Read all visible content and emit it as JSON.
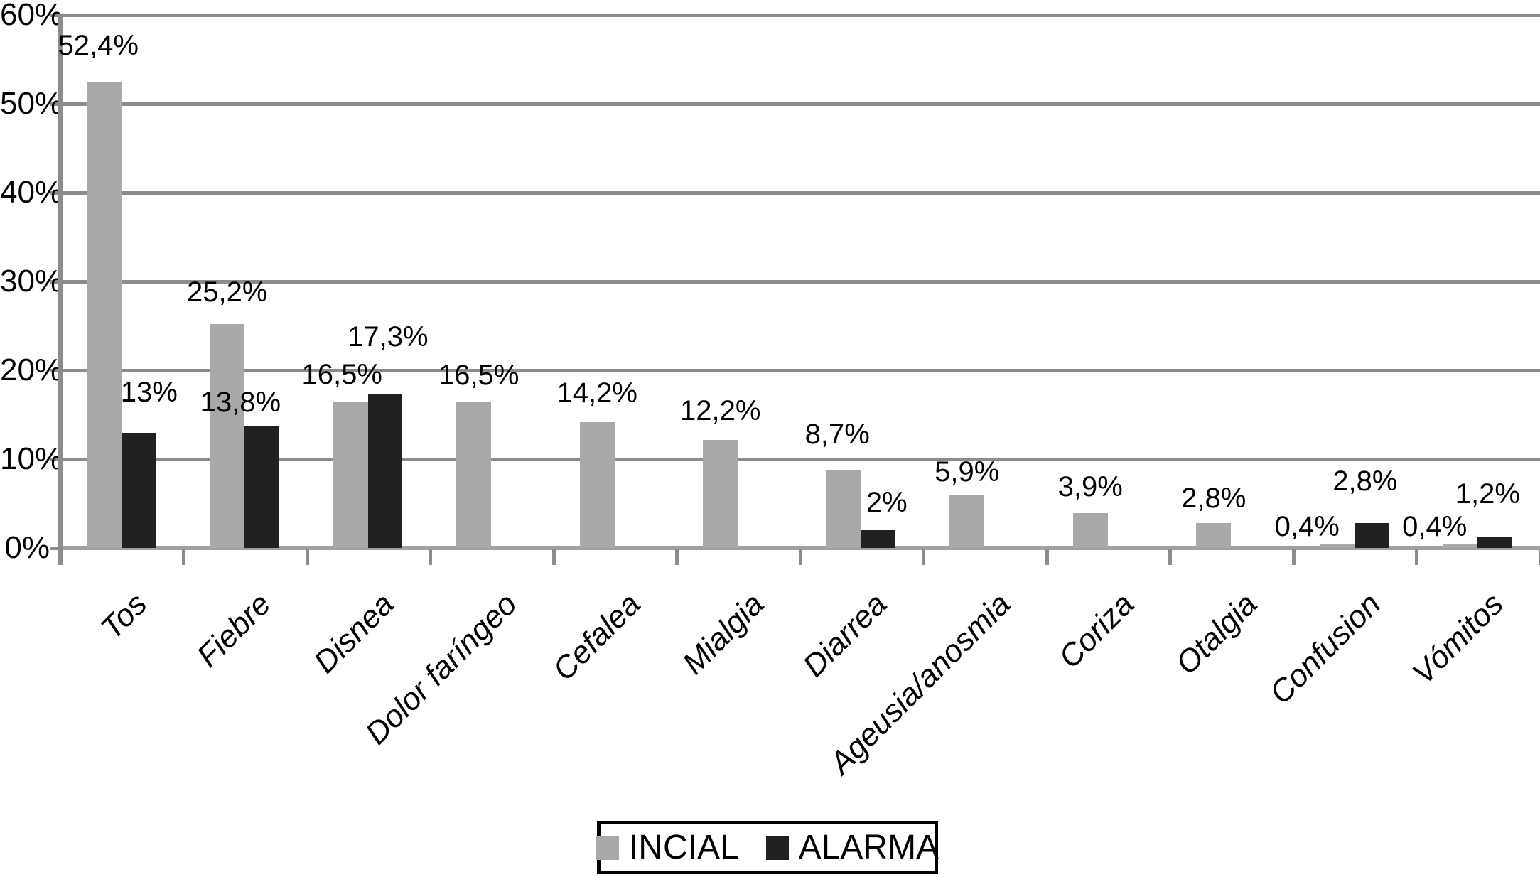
{
  "chart_data": {
    "type": "bar",
    "title": "",
    "categories": [
      "Tos",
      "Fiebre",
      "Disnea",
      "Dolor faríngeo",
      "Cefalea",
      "Mialgia",
      "Diarrea",
      "Ageusia/anosmia",
      "Coriza",
      "Otalgia",
      "Confusion",
      "Vómitos"
    ],
    "series": [
      {
        "name": "INCIAL",
        "color": "#a9a9a9",
        "values": [
          52.4,
          25.2,
          16.5,
          16.5,
          14.2,
          12.2,
          8.7,
          5.9,
          3.9,
          2.8,
          0.4,
          0.4
        ],
        "data_labels": [
          "52,4%",
          "25,2%",
          "16,5%",
          "16,5%",
          "14,2%",
          "12,2%",
          "8,7%",
          "5,9%",
          "3,9%",
          "2,8%",
          "0,4%",
          "0,4%"
        ]
      },
      {
        "name": "ALARMA",
        "color": "#212121",
        "values": [
          13,
          13.8,
          17.3,
          null,
          null,
          null,
          2,
          null,
          null,
          null,
          2.8,
          1.2
        ],
        "data_labels": [
          "13%",
          "13,8%",
          "17,3%",
          null,
          null,
          null,
          "2%",
          null,
          null,
          null,
          "2,8%",
          "1,2%"
        ]
      }
    ],
    "y_axis": {
      "ticks": [
        "0%",
        "10%",
        "20%",
        "30%",
        "40%",
        "50%",
        "60%"
      ],
      "min": 0,
      "max": 60,
      "step": 10
    },
    "grid": true,
    "legend_position": "bottom",
    "colors": {
      "gridline": "#8c8c8c",
      "x_axis": "#a0a0a0",
      "text": "#000000",
      "background": "#ffffff"
    }
  },
  "legend": {
    "items": [
      {
        "label": "INCIAL",
        "color": "#a9a9a9"
      },
      {
        "label": "ALARMA",
        "color": "#212121"
      }
    ]
  }
}
